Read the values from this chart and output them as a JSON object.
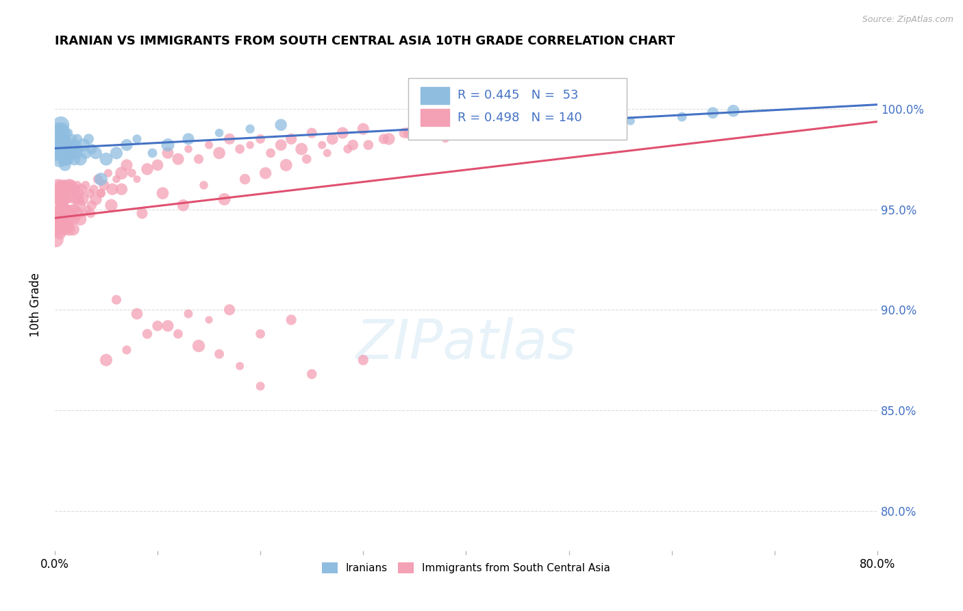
{
  "title": "IRANIAN VS IMMIGRANTS FROM SOUTH CENTRAL ASIA 10TH GRADE CORRELATION CHART",
  "source": "Source: ZipAtlas.com",
  "ylabel": "10th Grade",
  "ylabel_right_ticks": [
    "100.0%",
    "95.0%",
    "90.0%",
    "85.0%",
    "80.0%"
  ],
  "ylabel_right_vals": [
    1.0,
    0.95,
    0.9,
    0.85,
    0.8
  ],
  "xmin": 0.0,
  "xmax": 0.8,
  "ymin": 0.78,
  "ymax": 1.025,
  "color_iranian": "#8FBDE0",
  "color_immigrant": "#F4A0B5",
  "color_trendline_iranian": "#4472C4",
  "color_trendline_immigrant": "#E05070",
  "color_legend_text": "#4472C4",
  "color_grid": "#DDDDDD",
  "iranians_x": [
    0.001,
    0.002,
    0.003,
    0.004,
    0.004,
    0.005,
    0.006,
    0.006,
    0.007,
    0.007,
    0.008,
    0.008,
    0.009,
    0.009,
    0.01,
    0.01,
    0.011,
    0.011,
    0.012,
    0.012,
    0.013,
    0.013,
    0.014,
    0.015,
    0.016,
    0.017,
    0.018,
    0.019,
    0.02,
    0.021,
    0.022,
    0.023,
    0.025,
    0.028,
    0.03,
    0.033,
    0.036,
    0.04,
    0.045,
    0.05,
    0.06,
    0.07,
    0.08,
    0.095,
    0.11,
    0.13,
    0.16,
    0.19,
    0.22,
    0.56,
    0.61,
    0.64,
    0.66
  ],
  "iranians_y": [
    0.978,
    0.982,
    0.988,
    0.99,
    0.985,
    0.975,
    0.98,
    0.992,
    0.985,
    0.978,
    0.99,
    0.982,
    0.975,
    0.988,
    0.98,
    0.972,
    0.985,
    0.978,
    0.982,
    0.975,
    0.988,
    0.98,
    0.975,
    0.982,
    0.978,
    0.985,
    0.98,
    0.975,
    0.982,
    0.978,
    0.985,
    0.98,
    0.975,
    0.982,
    0.978,
    0.985,
    0.98,
    0.978,
    0.965,
    0.975,
    0.978,
    0.982,
    0.985,
    0.978,
    0.982,
    0.985,
    0.988,
    0.99,
    0.992,
    0.994,
    0.996,
    0.998,
    0.999
  ],
  "immigrants_x": [
    0.001,
    0.001,
    0.002,
    0.002,
    0.003,
    0.003,
    0.004,
    0.004,
    0.005,
    0.005,
    0.005,
    0.006,
    0.006,
    0.006,
    0.007,
    0.007,
    0.007,
    0.008,
    0.008,
    0.008,
    0.009,
    0.009,
    0.009,
    0.01,
    0.01,
    0.01,
    0.011,
    0.011,
    0.011,
    0.012,
    0.012,
    0.013,
    0.013,
    0.014,
    0.014,
    0.015,
    0.015,
    0.015,
    0.016,
    0.016,
    0.017,
    0.017,
    0.018,
    0.018,
    0.019,
    0.019,
    0.02,
    0.02,
    0.021,
    0.022,
    0.022,
    0.023,
    0.024,
    0.025,
    0.026,
    0.027,
    0.028,
    0.03,
    0.032,
    0.034,
    0.036,
    0.038,
    0.04,
    0.042,
    0.045,
    0.048,
    0.052,
    0.056,
    0.06,
    0.065,
    0.07,
    0.075,
    0.08,
    0.09,
    0.1,
    0.11,
    0.12,
    0.13,
    0.14,
    0.15,
    0.16,
    0.17,
    0.18,
    0.19,
    0.2,
    0.21,
    0.22,
    0.23,
    0.24,
    0.25,
    0.26,
    0.27,
    0.28,
    0.29,
    0.3,
    0.32,
    0.34,
    0.36,
    0.38,
    0.4,
    0.15,
    0.17,
    0.2,
    0.23,
    0.05,
    0.07,
    0.09,
    0.11,
    0.13,
    0.025,
    0.035,
    0.045,
    0.055,
    0.065,
    0.085,
    0.105,
    0.125,
    0.145,
    0.165,
    0.185,
    0.205,
    0.225,
    0.245,
    0.265,
    0.285,
    0.305,
    0.325,
    0.345,
    0.365,
    0.3,
    0.25,
    0.2,
    0.18,
    0.16,
    0.14,
    0.12,
    0.1,
    0.08,
    0.06
  ],
  "immigrants_y": [
    0.945,
    0.935,
    0.958,
    0.94,
    0.962,
    0.948,
    0.955,
    0.942,
    0.96,
    0.95,
    0.938,
    0.952,
    0.945,
    0.962,
    0.948,
    0.955,
    0.94,
    0.958,
    0.95,
    0.942,
    0.962,
    0.945,
    0.955,
    0.948,
    0.962,
    0.94,
    0.958,
    0.95,
    0.942,
    0.962,
    0.945,
    0.955,
    0.948,
    0.962,
    0.94,
    0.958,
    0.95,
    0.942,
    0.962,
    0.945,
    0.955,
    0.948,
    0.962,
    0.94,
    0.958,
    0.95,
    0.945,
    0.96,
    0.955,
    0.962,
    0.948,
    0.958,
    0.952,
    0.945,
    0.96,
    0.955,
    0.948,
    0.962,
    0.95,
    0.958,
    0.952,
    0.96,
    0.955,
    0.965,
    0.958,
    0.962,
    0.968,
    0.96,
    0.965,
    0.968,
    0.972,
    0.968,
    0.965,
    0.97,
    0.972,
    0.978,
    0.975,
    0.98,
    0.975,
    0.982,
    0.978,
    0.985,
    0.98,
    0.982,
    0.985,
    0.978,
    0.982,
    0.985,
    0.98,
    0.988,
    0.982,
    0.985,
    0.988,
    0.982,
    0.99,
    0.985,
    0.988,
    0.99,
    0.985,
    0.988,
    0.895,
    0.9,
    0.888,
    0.895,
    0.875,
    0.88,
    0.888,
    0.892,
    0.898,
    0.955,
    0.948,
    0.958,
    0.952,
    0.96,
    0.948,
    0.958,
    0.952,
    0.962,
    0.955,
    0.965,
    0.968,
    0.972,
    0.975,
    0.978,
    0.98,
    0.982,
    0.985,
    0.988,
    0.99,
    0.875,
    0.868,
    0.862,
    0.872,
    0.878,
    0.882,
    0.888,
    0.892,
    0.898,
    0.905
  ]
}
